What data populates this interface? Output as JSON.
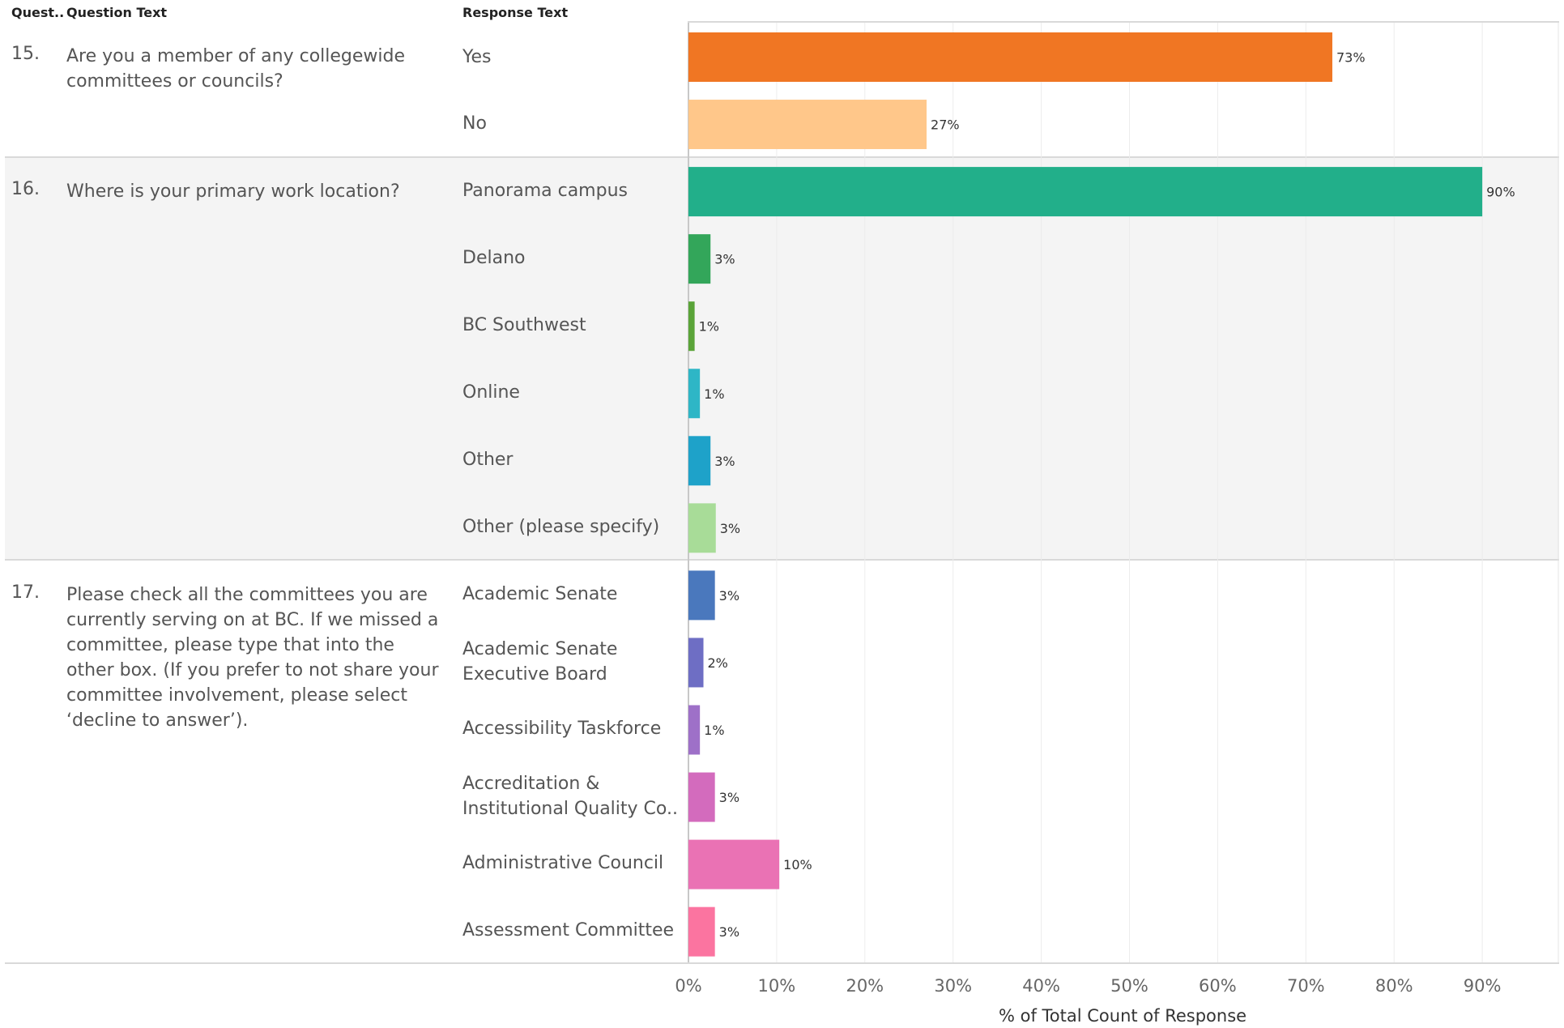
{
  "headers": {
    "question_num": "Quest..",
    "question_text": "Question Text",
    "response_text": "Response Text"
  },
  "groups": [
    {
      "num": "15.",
      "text": "Are you a member of any collegewide committees or councils?",
      "shaded": false
    },
    {
      "num": "16.",
      "text": "Where is your primary work location?",
      "shaded": true
    },
    {
      "num": "17.",
      "text": "Please check all the committees you are currently serving on at BC. If we missed a committee, please type that into the other box. (If you prefer to not share your committee involvement, please select ‘decline to answer’).",
      "shaded": false
    }
  ],
  "chart_data": {
    "type": "bar",
    "orientation": "horizontal",
    "xlabel": "% of Total Count of Response",
    "xlim": [
      0,
      100
    ],
    "xticks": [
      "0%",
      "10%",
      "20%",
      "30%",
      "40%",
      "50%",
      "60%",
      "70%",
      "80%",
      "90%"
    ],
    "grid": "vertical",
    "bars": [
      {
        "group": 0,
        "label": "Yes",
        "value": 73,
        "text": "73%",
        "color": "#f07623"
      },
      {
        "group": 0,
        "label": "No",
        "value": 27,
        "text": "27%",
        "color": "#ffc78a"
      },
      {
        "group": 1,
        "label": "Panorama campus",
        "value": 90,
        "text": "90%",
        "color": "#22af8a"
      },
      {
        "group": 1,
        "label": "Delano",
        "value": 2.5,
        "text": "3%",
        "color": "#33a65a"
      },
      {
        "group": 1,
        "label": "BC Southwest",
        "value": 0.7,
        "text": "1%",
        "color": "#5aa438"
      },
      {
        "group": 1,
        "label": "Online",
        "value": 1.3,
        "text": "1%",
        "color": "#2eb6c6"
      },
      {
        "group": 1,
        "label": "Other",
        "value": 2.5,
        "text": "3%",
        "color": "#1ea2c9"
      },
      {
        "group": 1,
        "label": "Other (please specify)",
        "value": 3.1,
        "text": "3%",
        "color": "#a8dc98"
      },
      {
        "group": 2,
        "label": "Academic Senate",
        "value": 3.0,
        "text": "3%",
        "color": "#4a78bd"
      },
      {
        "group": 2,
        "label": "Academic Senate Executive Board",
        "value": 1.7,
        "text": "2%",
        "color": "#6e6ec4"
      },
      {
        "group": 2,
        "label": "Accessibility Taskforce",
        "value": 1.3,
        "text": "1%",
        "color": "#9e70c8"
      },
      {
        "group": 2,
        "label": "Accreditation & Institutional Quality Co..",
        "value": 3.0,
        "text": "3%",
        "color": "#d36bbd"
      },
      {
        "group": 2,
        "label": "Administrative Council",
        "value": 10.3,
        "text": "10%",
        "color": "#ea72b4"
      },
      {
        "group": 2,
        "label": "Assessment Committee",
        "value": 3.0,
        "text": "3%",
        "color": "#fb74a0"
      }
    ]
  }
}
